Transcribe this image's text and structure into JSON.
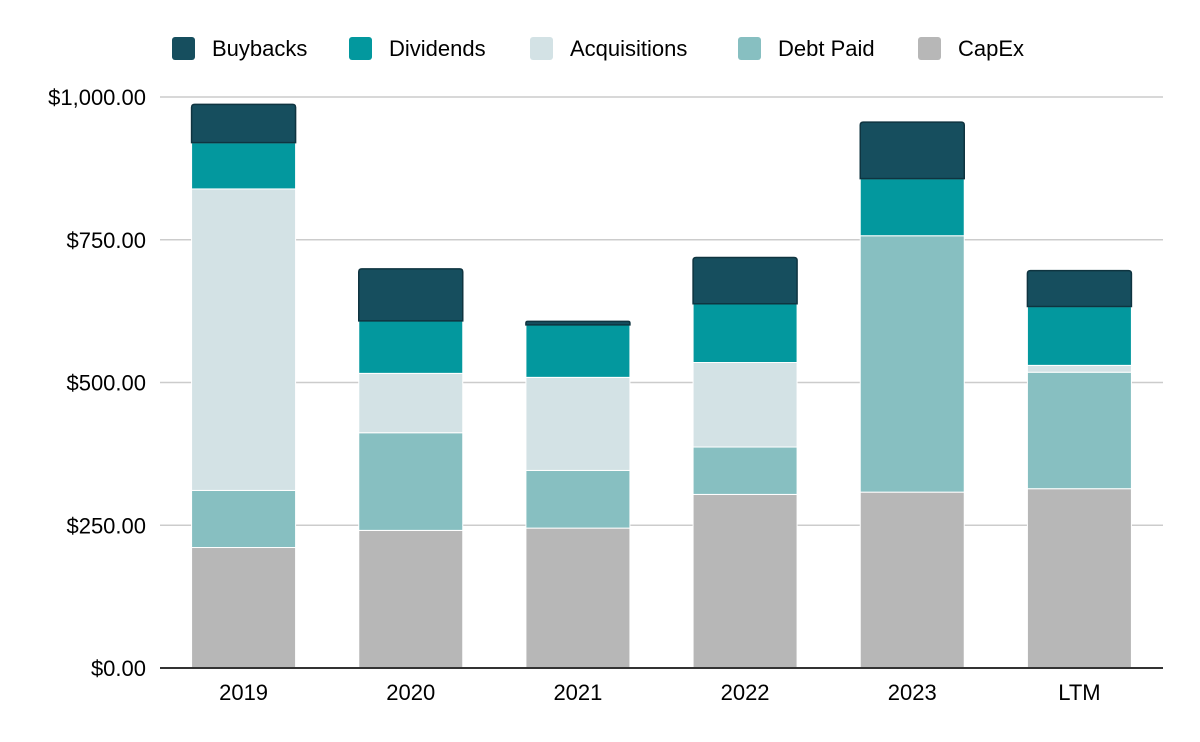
{
  "chart_data": {
    "type": "bar",
    "stacked": true,
    "categories": [
      "2019",
      "2020",
      "2021",
      "2022",
      "2023",
      "LTM"
    ],
    "series": [
      {
        "name": "CapEx",
        "color": "#b7b7b7",
        "values": [
          211,
          241,
          245,
          304,
          308,
          314
        ]
      },
      {
        "name": "Debt Paid",
        "color": "#87bfc1",
        "values": [
          100,
          171,
          101,
          83,
          449,
          204
        ]
      },
      {
        "name": "Acquisitions",
        "color": "#d3e2e5",
        "values": [
          528,
          104,
          163,
          148,
          0,
          12
        ]
      },
      {
        "name": "Dividends",
        "color": "#03989e",
        "values": [
          81,
          92,
          92,
          103,
          100,
          103
        ]
      },
      {
        "name": "Buybacks",
        "color": "#164e5e",
        "values": [
          67,
          91,
          6,
          81,
          99,
          63
        ]
      }
    ],
    "legend_order": [
      "Buybacks",
      "Dividends",
      "Acquisitions",
      "Debt Paid",
      "CapEx"
    ],
    "legend_position": "top",
    "y_ticks": [
      "$0.00",
      "$250.00",
      "$500.00",
      "$750.00",
      "$1,000.00"
    ],
    "ylim": [
      0,
      1000
    ],
    "grid": true,
    "title": "",
    "xlabel": "",
    "ylabel": ""
  }
}
